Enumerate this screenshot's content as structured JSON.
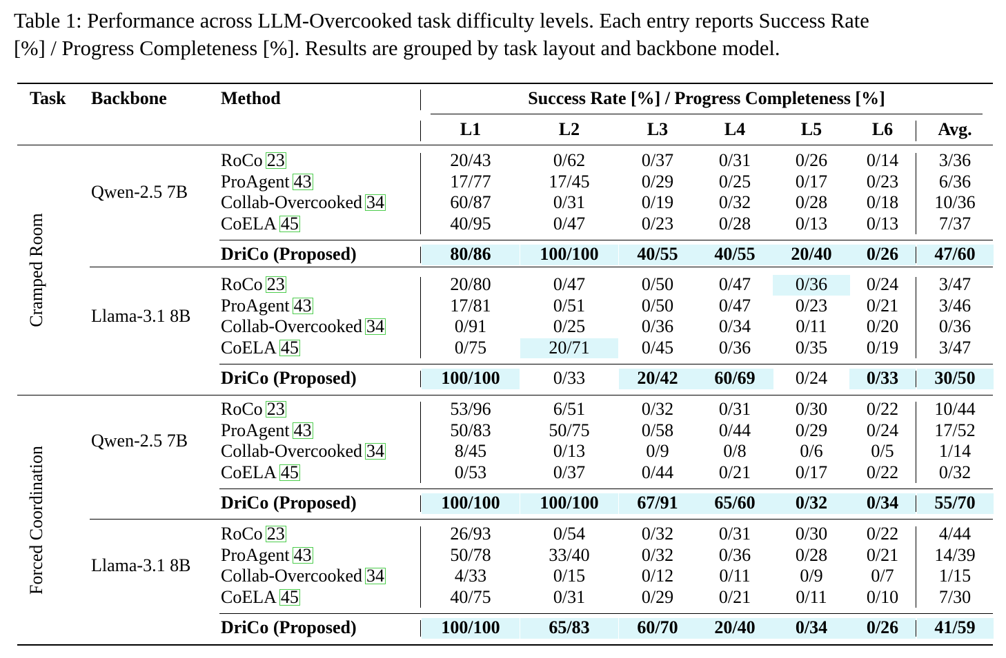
{
  "caption": {
    "line1": "Table 1: Performance across LLM-Overcooked task difficulty levels. Each entry reports Success Rate",
    "line2": "[%] / Progress Completeness [%]. Results are grouped by task layout and backbone model."
  },
  "header": {
    "task": "Task",
    "backbone": "Backbone",
    "method": "Method",
    "group": "Success Rate [%] / Progress Completeness [%]",
    "levels": [
      "L1",
      "L2",
      "L3",
      "L4",
      "L5",
      "L6"
    ],
    "avg": "Avg."
  },
  "colors": {
    "highlight": "#dcf6fa",
    "citation_box": "#4ccc4c"
  },
  "tasks": [
    {
      "name": "Cramped Room",
      "groups": [
        {
          "backbone": "Qwen-2.5 7B",
          "rows": [
            {
              "method": "RoCo",
              "cite": "23",
              "values": [
                "20/43",
                "0/62",
                "0/37",
                "0/31",
                "0/26",
                "0/14"
              ],
              "avg": "3/36",
              "hl": []
            },
            {
              "method": "ProAgent",
              "cite": "43",
              "values": [
                "17/77",
                "17/45",
                "0/29",
                "0/25",
                "0/17",
                "0/23"
              ],
              "avg": "6/36",
              "hl": []
            },
            {
              "method": "Collab-Overcooked",
              "cite": "34",
              "values": [
                "60/87",
                "0/31",
                "0/19",
                "0/32",
                "0/28",
                "0/18"
              ],
              "avg": "10/36",
              "hl": []
            },
            {
              "method": "CoELA",
              "cite": "45",
              "values": [
                "40/95",
                "0/47",
                "0/23",
                "0/28",
                "0/13",
                "0/13"
              ],
              "avg": "7/37",
              "hl": []
            }
          ],
          "proposed": {
            "method": "DriCo (Proposed)",
            "values": [
              "80/86",
              "100/100",
              "40/55",
              "40/55",
              "20/40",
              "0/26"
            ],
            "avg": "47/60",
            "hl": [
              0,
              1,
              2,
              3,
              4,
              5,
              6
            ],
            "bold": [
              0,
              1,
              2,
              3,
              4,
              5,
              6
            ]
          }
        },
        {
          "backbone": "Llama-3.1 8B",
          "rows": [
            {
              "method": "RoCo",
              "cite": "23",
              "values": [
                "20/80",
                "0/47",
                "0/50",
                "0/47",
                "0/36",
                "0/24"
              ],
              "avg": "3/47",
              "hl": [
                4
              ]
            },
            {
              "method": "ProAgent",
              "cite": "43",
              "values": [
                "17/81",
                "0/51",
                "0/50",
                "0/47",
                "0/23",
                "0/21"
              ],
              "avg": "3/46",
              "hl": []
            },
            {
              "method": "Collab-Overcooked",
              "cite": "34",
              "values": [
                "0/91",
                "0/25",
                "0/36",
                "0/34",
                "0/11",
                "0/20"
              ],
              "avg": "0/36",
              "hl": []
            },
            {
              "method": "CoELA",
              "cite": "45",
              "values": [
                "0/75",
                "20/71",
                "0/45",
                "0/36",
                "0/35",
                "0/19"
              ],
              "avg": "3/47",
              "hl": [
                1
              ]
            }
          ],
          "proposed": {
            "method": "DriCo (Proposed)",
            "values": [
              "100/100",
              "0/33",
              "20/42",
              "60/69",
              "0/24",
              "0/33"
            ],
            "avg": "30/50",
            "hl": [
              0,
              2,
              3,
              5,
              6
            ],
            "bold": [
              0,
              2,
              3,
              5,
              6
            ]
          }
        }
      ]
    },
    {
      "name": "Forced Coordination",
      "groups": [
        {
          "backbone": "Qwen-2.5 7B",
          "rows": [
            {
              "method": "RoCo",
              "cite": "23",
              "values": [
                "53/96",
                "6/51",
                "0/32",
                "0/31",
                "0/30",
                "0/22"
              ],
              "avg": "10/44",
              "hl": []
            },
            {
              "method": "ProAgent",
              "cite": "43",
              "values": [
                "50/83",
                "50/75",
                "0/58",
                "0/44",
                "0/29",
                "0/24"
              ],
              "avg": "17/52",
              "hl": []
            },
            {
              "method": "Collab-Overcooked",
              "cite": "34",
              "values": [
                "8/45",
                "0/13",
                "0/9",
                "0/8",
                "0/6",
                "0/5"
              ],
              "avg": "1/14",
              "hl": []
            },
            {
              "method": "CoELA",
              "cite": "45",
              "values": [
                "0/53",
                "0/37",
                "0/44",
                "0/21",
                "0/17",
                "0/22"
              ],
              "avg": "0/32",
              "hl": []
            }
          ],
          "proposed": {
            "method": "DriCo (Proposed)",
            "values": [
              "100/100",
              "100/100",
              "67/91",
              "65/60",
              "0/32",
              "0/34"
            ],
            "avg": "55/70",
            "hl": [
              0,
              1,
              2,
              3,
              4,
              5,
              6
            ],
            "bold": [
              0,
              1,
              2,
              3,
              4,
              5,
              6
            ]
          }
        },
        {
          "backbone": "Llama-3.1 8B",
          "rows": [
            {
              "method": "RoCo",
              "cite": "23",
              "values": [
                "26/93",
                "0/54",
                "0/32",
                "0/31",
                "0/30",
                "0/22"
              ],
              "avg": "4/44",
              "hl": []
            },
            {
              "method": "ProAgent",
              "cite": "43",
              "values": [
                "50/78",
                "33/40",
                "0/32",
                "0/36",
                "0/28",
                "0/21"
              ],
              "avg": "14/39",
              "hl": []
            },
            {
              "method": "Collab-Overcooked",
              "cite": "34",
              "values": [
                "4/33",
                "0/15",
                "0/12",
                "0/11",
                "0/9",
                "0/7"
              ],
              "avg": "1/15",
              "hl": []
            },
            {
              "method": "CoELA",
              "cite": "45",
              "values": [
                "40/75",
                "0/31",
                "0/29",
                "0/21",
                "0/11",
                "0/10"
              ],
              "avg": "7/30",
              "hl": []
            }
          ],
          "proposed": {
            "method": "DriCo (Proposed)",
            "values": [
              "100/100",
              "65/83",
              "60/70",
              "20/40",
              "0/34",
              "0/26"
            ],
            "avg": "41/59",
            "hl": [
              0,
              1,
              2,
              3,
              4,
              5,
              6
            ],
            "bold": [
              0,
              1,
              2,
              3,
              4,
              5,
              6
            ]
          }
        }
      ]
    }
  ]
}
